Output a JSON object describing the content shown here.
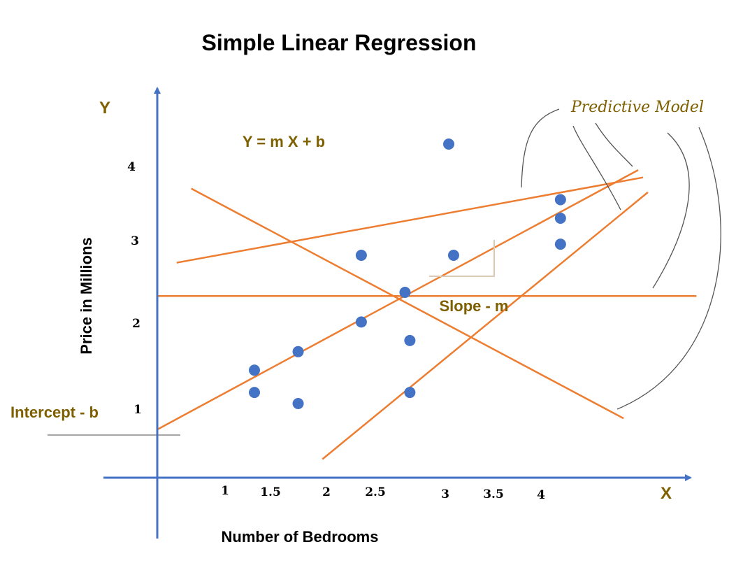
{
  "title": "Simple Linear Regression",
  "equation": "Y = m X + b",
  "y_axis_letter": "Y",
  "x_axis_letter": "X",
  "y_axis_label": "Price in Millions",
  "x_axis_label": "Number of Bedrooms",
  "intercept_label": "Intercept - b",
  "slope_label": "Slope - m",
  "predictive_model_label": "Predictive Model",
  "colors": {
    "axis": "#4472c4",
    "points": "#4472c4",
    "lines": "#ed7d31",
    "label_text": "#7f6000",
    "annotation_stroke": "#555555"
  },
  "chart_data": {
    "type": "scatter",
    "x_ticks": [
      "1",
      "1.5",
      "2",
      "2.5",
      "3",
      "3.5",
      "4"
    ],
    "y_ticks": [
      "1",
      "2",
      "3",
      "4"
    ],
    "points": [
      {
        "x": 1.0,
        "y": 1.45
      },
      {
        "x": 1.0,
        "y": 1.15
      },
      {
        "x": 1.45,
        "y": 1.7
      },
      {
        "x": 1.45,
        "y": 1.0
      },
      {
        "x": 2.1,
        "y": 3.0
      },
      {
        "x": 2.1,
        "y": 2.1
      },
      {
        "x": 2.55,
        "y": 2.5
      },
      {
        "x": 2.6,
        "y": 1.85
      },
      {
        "x": 2.6,
        "y": 1.15
      },
      {
        "x": 3.0,
        "y": 4.5
      },
      {
        "x": 3.05,
        "y": 3.0
      },
      {
        "x": 4.15,
        "y": 3.75
      },
      {
        "x": 4.15,
        "y": 3.5
      },
      {
        "x": 4.15,
        "y": 3.15
      }
    ],
    "lines": [
      {
        "x1": 0.35,
        "y1": 3.9,
        "x2": 4.8,
        "y2": 0.8
      },
      {
        "x1": 0.2,
        "y1": 2.9,
        "x2": 5.0,
        "y2": 4.05
      },
      {
        "x1": 0.0,
        "y1": 0.65,
        "x2": 4.95,
        "y2": 4.15
      },
      {
        "x1": 1.7,
        "y1": 0.25,
        "x2": 5.05,
        "y2": 3.85
      },
      {
        "x1": 0.0,
        "y1": 2.45,
        "x2": 5.55,
        "y2": 2.45
      }
    ]
  }
}
